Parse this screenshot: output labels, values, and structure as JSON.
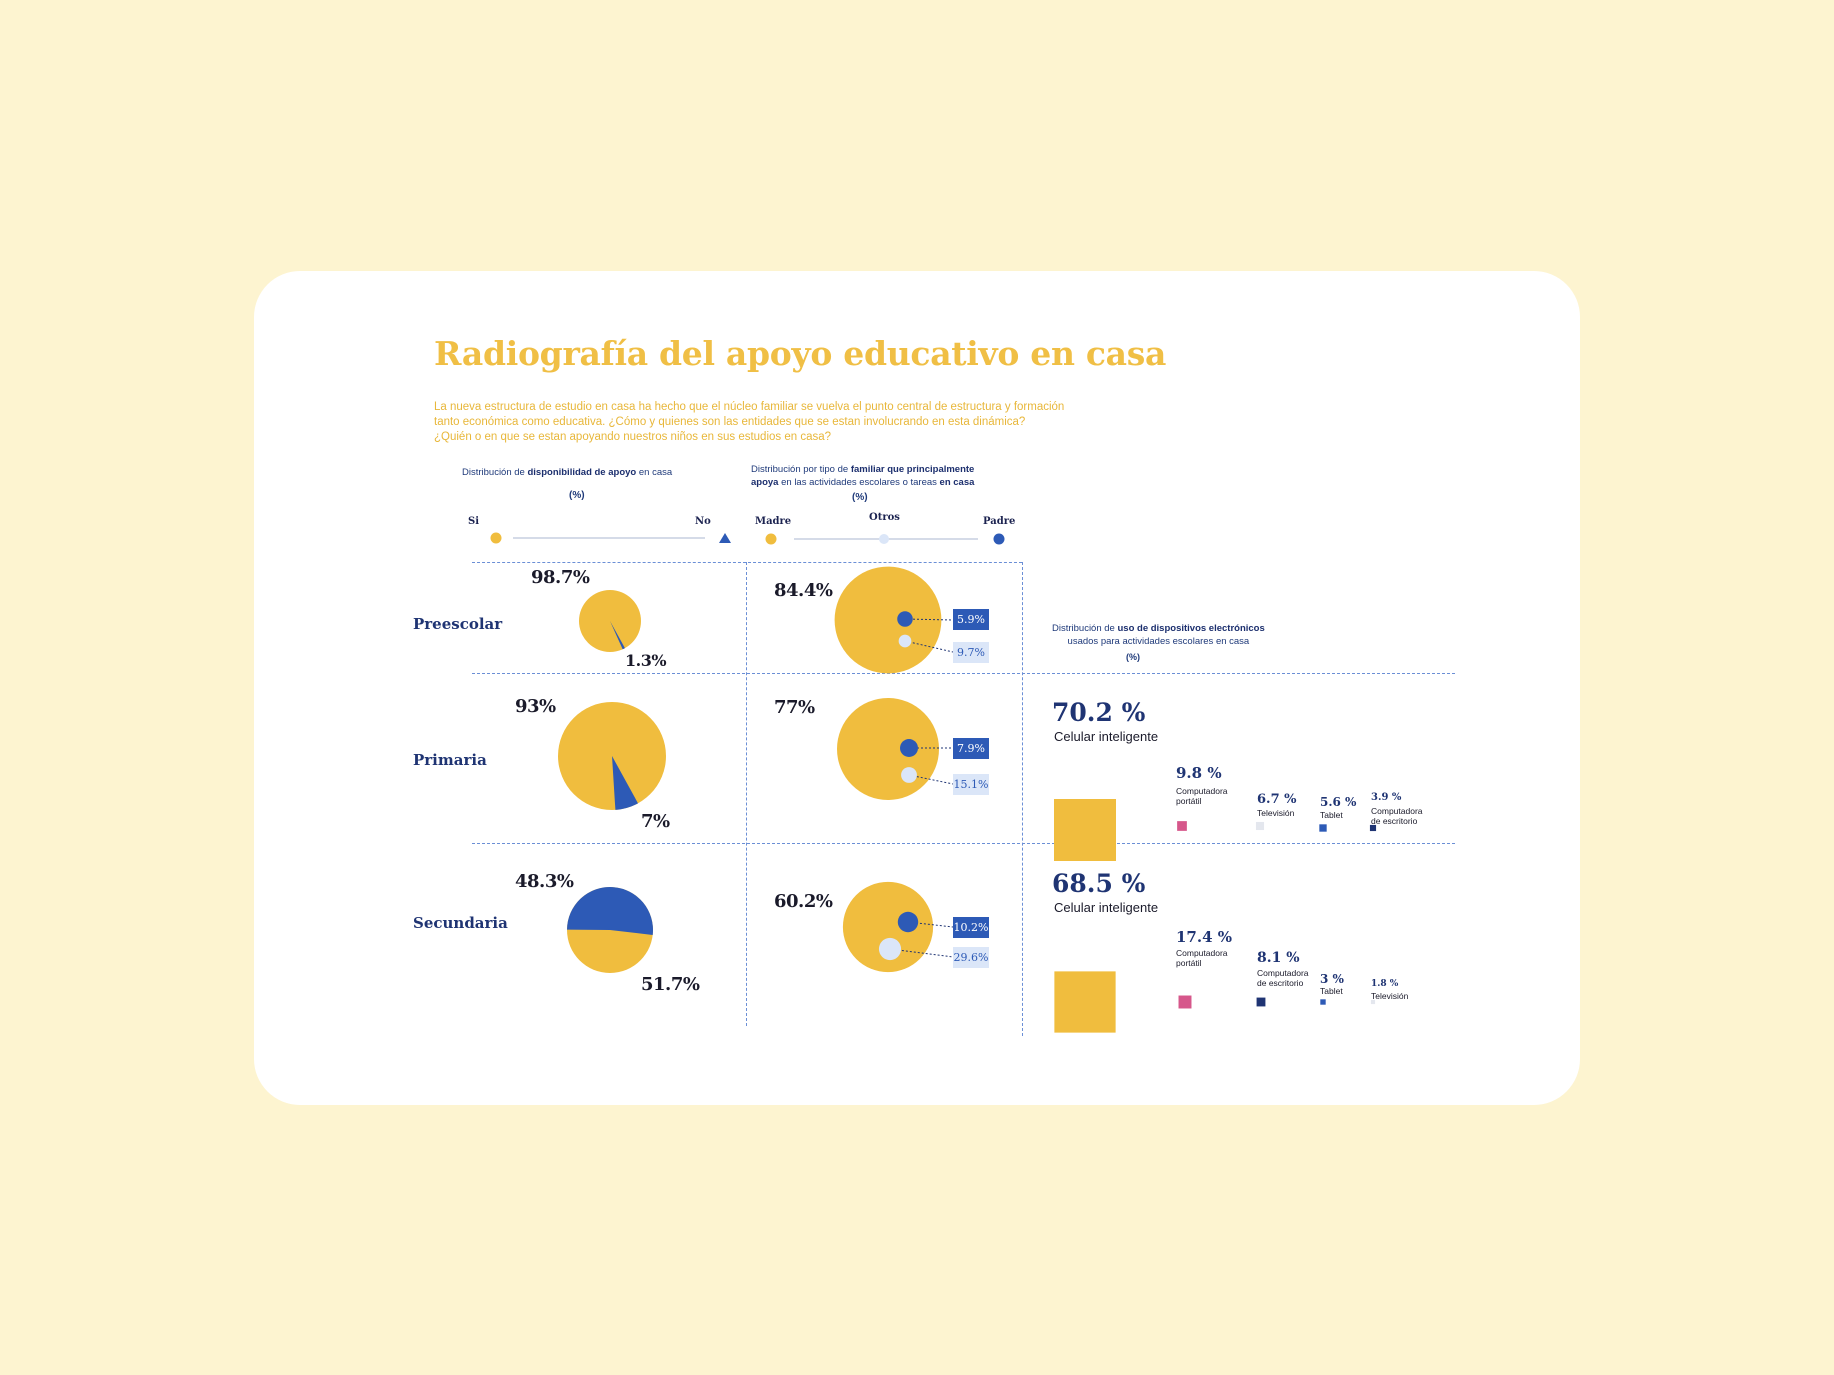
{
  "header": {
    "title": "Radiografía del apoyo educativo en casa",
    "intro": [
      "La nueva estructura de estudio en casa ha hecho que el núcleo familiar se vuelva el punto central de estructura y formación",
      "tanto económica como educativa. ¿Cómo y quienes son las entidades que se estan involucrando en esta dinámica?",
      "¿Quién o en que se estan apoyando nuestros niños en sus estudios en casa?"
    ]
  },
  "colors": {
    "yellow": "#f0bd3e",
    "blue": "#2d5ab6",
    "light": "#dbe6f8",
    "pink": "#d6578b",
    "navy": "#1f3473"
  },
  "section1": {
    "title_pre": "Distribución de ",
    "title_bold": "disponibilidad de apoyo",
    "title_post": " en casa",
    "unit": "(%)",
    "legend_si": "Si",
    "legend_no": "No"
  },
  "section2": {
    "title_line1_pre": "Distribución por tipo de ",
    "title_line1_bold": "familiar que principalmente",
    "title_line2_bold": "apoya",
    "title_line2_mid": " en las actividades escolares o tareas ",
    "title_line2_bold2": "en casa",
    "unit": "(%)",
    "legend_madre": "Madre",
    "legend_otros": "Otros",
    "legend_padre": "Padre"
  },
  "section3": {
    "title_line1_pre": "Distribución de ",
    "title_line1_bold": "uso de dispositivos electrónicos",
    "title_line2": "usados para actividades escolares en casa",
    "unit": "(%)"
  },
  "rows": [
    {
      "label": "Preescolar"
    },
    {
      "label": "Primaria"
    },
    {
      "label": "Secundaria"
    }
  ],
  "chart_data": [
    {
      "type": "pie",
      "title": "Distribución de disponibilidad de apoyo en casa",
      "categories": [
        "Si",
        "No"
      ],
      "series": [
        {
          "name": "Preescolar",
          "values": [
            98.7,
            1.3
          ],
          "labels": [
            "98.7%",
            "1.3%"
          ]
        },
        {
          "name": "Primaria",
          "values": [
            93,
            7
          ],
          "labels": [
            "93%",
            "7%"
          ]
        },
        {
          "name": "Secundaria",
          "values": [
            48.3,
            51.7
          ],
          "labels": [
            "48.3%",
            "51.7%"
          ]
        }
      ]
    },
    {
      "type": "scatter",
      "title": "Distribución por tipo de familiar que principalmente apoya en las actividades escolares o tareas en casa",
      "categories": [
        "Madre",
        "Padre",
        "Otros"
      ],
      "series": [
        {
          "name": "Preescolar",
          "values": [
            84.4,
            5.9,
            9.7
          ],
          "labels": [
            "84.4%",
            "5.9%",
            "9.7%"
          ]
        },
        {
          "name": "Primaria",
          "values": [
            77,
            7.9,
            15.1
          ],
          "labels": [
            "77%",
            "7.9%",
            "15.1%"
          ]
        },
        {
          "name": "Secundaria",
          "values": [
            60.2,
            10.2,
            29.6
          ],
          "labels": [
            "60.2%",
            "10.2%",
            "29.6%"
          ]
        }
      ]
    },
    {
      "type": "bar",
      "title": "Distribución de uso de dispositivos electrónicos usados para actividades escolares en casa",
      "series": [
        {
          "name": "Primaria",
          "items": [
            {
              "label": "Celular inteligente",
              "value": 70.2,
              "text": "70.2 %"
            },
            {
              "label": "Computadora portátil",
              "value": 9.8,
              "text": "9.8 %"
            },
            {
              "label": "Televisión",
              "value": 6.7,
              "text": "6.7 %"
            },
            {
              "label": "Tablet",
              "value": 5.6,
              "text": "5.6 %"
            },
            {
              "label": "Computadora de escritorio",
              "value": 3.9,
              "text": "3.9 %"
            }
          ]
        },
        {
          "name": "Secundaria",
          "items": [
            {
              "label": "Celular inteligente",
              "value": 68.5,
              "text": "68.5 %"
            },
            {
              "label": "Computadora portátil",
              "value": 17.4,
              "text": "17.4 %"
            },
            {
              "label": "Computadora de escritorio",
              "value": 8.1,
              "text": "8.1 %"
            },
            {
              "label": "Tablet",
              "value": 3,
              "text": "3 %"
            },
            {
              "label": "Televisión",
              "value": 1.8,
              "text": "1.8 %"
            }
          ]
        }
      ]
    }
  ]
}
